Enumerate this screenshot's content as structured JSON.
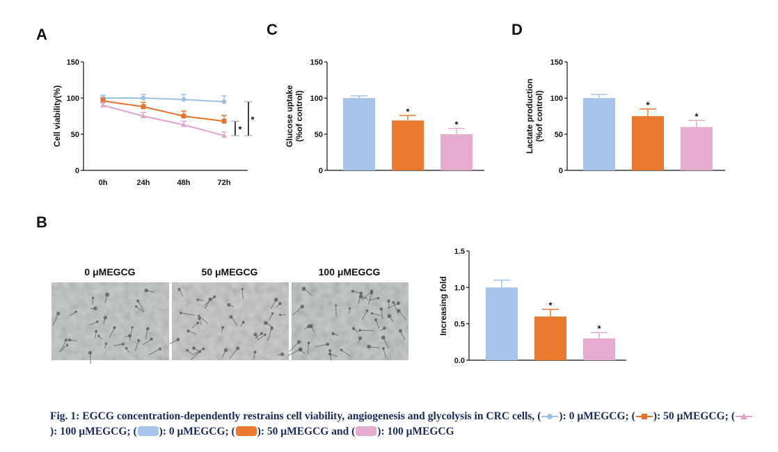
{
  "panel_letters": {
    "a": "A",
    "b": "B",
    "c": "C",
    "d": "D"
  },
  "image_labels": [
    "0 μMEGCG",
    "50 μMEGCG",
    "100 μMEGCG"
  ],
  "colors": {
    "blue": "#a7c5ea",
    "orange": "#e97a30",
    "pink": "#e6acd0",
    "lineBlue": "#9dc0e6",
    "lineOrange": "#e4742c",
    "linePink": "#dea5cf",
    "caption": "#1b2a5c"
  },
  "caption": {
    "lead": "Fig. 1: EGCG concentration-dependently restrains cell viability, angiogenesis and glycolysis in CRC cells,",
    "l1": ": 0 μMEGCG;",
    "l2": ": 50 μMEGCG;",
    "l3": ": 100 μMEGCG;",
    "b1": ": 0 μMEGCG;",
    "b2": ": 50 μMEGCG and",
    "b3": ": 100 μMEGCG"
  },
  "chart_data": [
    {
      "id": "A",
      "type": "line",
      "ylabel": "Cell viability(%)",
      "x": [
        "0h",
        "24h",
        "48h",
        "72h"
      ],
      "ylim": [
        0,
        150
      ],
      "yticks": [
        0,
        50,
        100,
        150
      ],
      "series": [
        {
          "marker": "circle",
          "values": [
            100,
            100,
            98,
            95
          ],
          "err": [
            4,
            5,
            7,
            8
          ]
        },
        {
          "marker": "square",
          "values": [
            96,
            88,
            75,
            68
          ],
          "err": [
            4,
            6,
            7,
            8
          ]
        },
        {
          "marker": "triangle",
          "values": [
            90,
            75,
            63,
            48
          ],
          "err": [
            4,
            5,
            5,
            5
          ]
        }
      ],
      "significance": [
        "*",
        "*"
      ]
    },
    {
      "id": "C",
      "type": "bar",
      "ylabel_lines": [
        "Glucose uptake",
        "(%of control)"
      ],
      "categories": [
        "0 μMEGCG",
        "50 μMEGCG",
        "100 μMEGCG"
      ],
      "values": [
        100,
        69,
        50
      ],
      "err": [
        3,
        7,
        8
      ],
      "ylim": [
        0,
        150
      ],
      "yticks": [
        0,
        50,
        100,
        150
      ],
      "annotations": [
        "",
        "*",
        "*"
      ]
    },
    {
      "id": "D",
      "type": "bar",
      "ylabel_lines": [
        "Lactate production",
        "(%of control)"
      ],
      "categories": [
        "0 μMEGCG",
        "50 μMEGCG",
        "100 μMEGCG"
      ],
      "values": [
        100,
        75,
        60
      ],
      "err": [
        5,
        10,
        9
      ],
      "ylim": [
        0,
        150
      ],
      "yticks": [
        0,
        50,
        100,
        150
      ],
      "annotations": [
        "",
        "*",
        "*"
      ]
    },
    {
      "id": "B",
      "type": "bar",
      "ylabel": "Increasing fold",
      "categories": [
        "0 μMEGCG",
        "50 μMEGCG",
        "100 μMEGCG"
      ],
      "values": [
        1.0,
        0.6,
        0.3
      ],
      "err": [
        0.1,
        0.1,
        0.08
      ],
      "ylim": [
        0,
        1.5
      ],
      "yticks": [
        "0.0",
        "0.5",
        "1.0",
        "1.5"
      ],
      "annotations": [
        "",
        "*",
        "*"
      ]
    }
  ]
}
